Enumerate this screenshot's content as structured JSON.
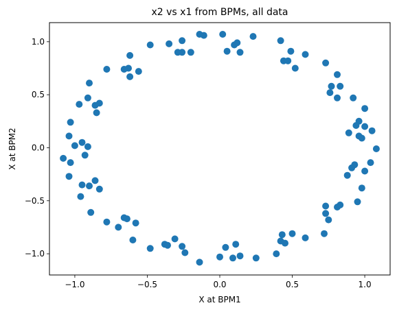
{
  "chart_data": {
    "type": "scatter",
    "title": "x2 vs x1 from BPMs, all data",
    "xlabel": "X at BPM1",
    "ylabel": "X at BPM2",
    "xlim": [
      -1.175,
      1.175
    ],
    "ylim": [
      -1.2,
      1.18
    ],
    "xticks": [
      -1.0,
      -0.5,
      0.0,
      0.5,
      1.0
    ],
    "xtick_labels": [
      "−1.0",
      "−0.5",
      "0.0",
      "0.5",
      "1.0"
    ],
    "yticks": [
      -1.0,
      -0.5,
      0.0,
      0.5,
      1.0
    ],
    "ytick_labels": [
      "−1.0",
      "−0.5",
      "0.0",
      "0.5",
      "1.0"
    ],
    "grid": false,
    "marker_color": "#1f77b4",
    "points": [
      [
        -0.14,
        1.07
      ],
      [
        0.02,
        1.07
      ],
      [
        0.23,
        1.05
      ],
      [
        -0.11,
        1.06
      ],
      [
        -0.26,
        1.01
      ],
      [
        0.12,
        0.99
      ],
      [
        0.1,
        0.97
      ],
      [
        -0.35,
        0.98
      ],
      [
        -0.48,
        0.97
      ],
      [
        0.42,
        1.01
      ],
      [
        -0.29,
        0.9
      ],
      [
        -0.26,
        0.9
      ],
      [
        -0.2,
        0.9
      ],
      [
        0.05,
        0.91
      ],
      [
        0.14,
        0.9
      ],
      [
        0.49,
        0.91
      ],
      [
        0.59,
        0.88
      ],
      [
        -0.62,
        0.87
      ],
      [
        0.44,
        0.82
      ],
      [
        0.47,
        0.82
      ],
      [
        -0.63,
        0.75
      ],
      [
        -0.66,
        0.74
      ],
      [
        -0.56,
        0.72
      ],
      [
        0.52,
        0.75
      ],
      [
        0.73,
        0.8
      ],
      [
        -0.78,
        0.74
      ],
      [
        -0.62,
        0.67
      ],
      [
        0.81,
        0.69
      ],
      [
        -0.9,
        0.61
      ],
      [
        0.77,
        0.58
      ],
      [
        0.83,
        0.58
      ],
      [
        0.76,
        0.52
      ],
      [
        0.81,
        0.47
      ],
      [
        -0.83,
        0.42
      ],
      [
        -0.86,
        0.4
      ],
      [
        -0.97,
        0.41
      ],
      [
        -0.91,
        0.47
      ],
      [
        0.92,
        0.47
      ],
      [
        -0.85,
        0.33
      ],
      [
        1.0,
        0.37
      ],
      [
        0.96,
        0.25
      ],
      [
        0.94,
        0.21
      ],
      [
        1.0,
        0.2
      ],
      [
        0.89,
        0.14
      ],
      [
        1.05,
        0.16
      ],
      [
        -1.03,
        0.24
      ],
      [
        -1.04,
        0.11
      ],
      [
        -0.95,
        0.05
      ],
      [
        -0.91,
        0.01
      ],
      [
        -1.0,
        0.02
      ],
      [
        0.96,
        0.11
      ],
      [
        0.98,
        0.09
      ],
      [
        1.08,
        -0.01
      ],
      [
        -1.08,
        -0.1
      ],
      [
        -1.03,
        -0.14
      ],
      [
        -0.93,
        -0.07
      ],
      [
        0.93,
        -0.16
      ],
      [
        0.91,
        -0.19
      ],
      [
        1.04,
        -0.14
      ],
      [
        1.0,
        -0.22
      ],
      [
        0.88,
        -0.26
      ],
      [
        -1.04,
        -0.27
      ],
      [
        -0.95,
        -0.35
      ],
      [
        -0.9,
        -0.36
      ],
      [
        -0.86,
        -0.31
      ],
      [
        -0.83,
        -0.39
      ],
      [
        0.98,
        -0.38
      ],
      [
        -0.96,
        -0.46
      ],
      [
        0.95,
        -0.51
      ],
      [
        0.73,
        -0.55
      ],
      [
        0.81,
        -0.56
      ],
      [
        0.83,
        -0.54
      ],
      [
        0.73,
        -0.62
      ],
      [
        -0.89,
        -0.61
      ],
      [
        0.75,
        -0.68
      ],
      [
        -0.66,
        -0.66
      ],
      [
        -0.64,
        -0.67
      ],
      [
        -0.78,
        -0.7
      ],
      [
        -0.58,
        -0.71
      ],
      [
        -0.7,
        -0.75
      ],
      [
        0.72,
        -0.81
      ],
      [
        0.43,
        -0.82
      ],
      [
        0.5,
        -0.81
      ],
      [
        -0.31,
        -0.86
      ],
      [
        -0.6,
        -0.87
      ],
      [
        0.59,
        -0.85
      ],
      [
        0.42,
        -0.88
      ],
      [
        0.45,
        -0.9
      ],
      [
        -0.38,
        -0.91
      ],
      [
        -0.36,
        -0.92
      ],
      [
        -0.48,
        -0.95
      ],
      [
        -0.26,
        -0.93
      ],
      [
        0.11,
        -0.91
      ],
      [
        0.04,
        -0.94
      ],
      [
        0.39,
        -1.0
      ],
      [
        -0.24,
        -0.99
      ],
      [
        -0.14,
        -1.08
      ],
      [
        0.0,
        -1.03
      ],
      [
        0.09,
        -1.04
      ],
      [
        0.14,
        -1.02
      ],
      [
        0.25,
        -1.04
      ]
    ]
  }
}
